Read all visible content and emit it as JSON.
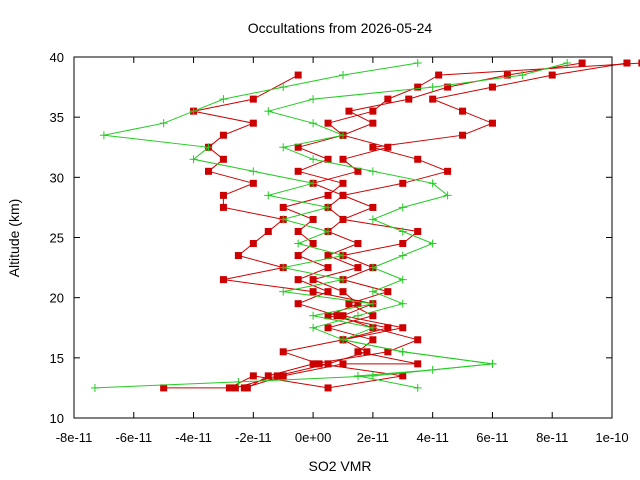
{
  "chart_data": {
    "type": "line",
    "title": "Occultations from 2026-05-24",
    "xlabel": "SO2 VMR",
    "ylabel": "Altitude (km)",
    "xlim": [
      -8e-11,
      1e-10
    ],
    "ylim": [
      10,
      40
    ],
    "x_ticks": [
      -8e-11,
      -6e-11,
      -4e-11,
      -2e-11,
      0,
      2e-11,
      4e-11,
      6e-11,
      8e-11,
      1e-10
    ],
    "x_tick_labels": [
      "-8e-11",
      "-6e-11",
      "-4e-11",
      "-2e-11",
      "0e+00",
      "2e-11",
      "4e-11",
      "6e-11",
      "8e-11",
      "1e-10"
    ],
    "y_ticks": [
      10,
      15,
      20,
      25,
      30,
      35,
      40
    ],
    "y_tick_labels": [
      "10",
      "15",
      "20",
      "25",
      "30",
      "35",
      "40"
    ],
    "grid": false,
    "legend": "none",
    "colors": {
      "red_series": "#cc0000",
      "green_series": "#22cc22"
    },
    "series": [
      {
        "marker": "square",
        "color": "#cc0000",
        "points": [
          [
            -5e-11,
            12.5
          ],
          [
            -2.8e-11,
            12.5
          ],
          [
            -2e-11,
            13.5
          ],
          [
            5e-12,
            12.5
          ],
          [
            3e-11,
            13.5
          ],
          [
            2e-12,
            14.5
          ],
          [
            -1e-11,
            15.5
          ],
          [
            1e-11,
            16.5
          ],
          [
            3e-11,
            17.5
          ],
          [
            1e-11,
            18.5
          ],
          [
            2e-11,
            19.5
          ],
          [
            0.0,
            20.5
          ],
          [
            -3e-11,
            21.5
          ],
          [
            -1e-11,
            22.5
          ],
          [
            -2.5e-11,
            23.5
          ],
          [
            -2e-11,
            24.5
          ],
          [
            -1.5e-11,
            25.5
          ],
          [
            -1e-11,
            26.5
          ],
          [
            -3e-11,
            27.5
          ],
          [
            -3e-11,
            28.5
          ],
          [
            -2e-11,
            29.5
          ],
          [
            -3.5e-11,
            30.5
          ],
          [
            -3e-11,
            31.5
          ],
          [
            -3.5e-11,
            32.5
          ],
          [
            -3e-11,
            33.5
          ],
          [
            -2e-11,
            34.5
          ],
          [
            -4e-11,
            35.5
          ],
          [
            -2e-11,
            36.5
          ],
          [
            -5e-12,
            38.5
          ]
        ]
      },
      {
        "marker": "square",
        "color": "#cc0000",
        "points": [
          [
            -2.3e-11,
            12.5
          ],
          [
            -1e-11,
            13.5
          ],
          [
            1e-11,
            14.5
          ],
          [
            3.5e-11,
            14.5
          ],
          [
            1.5e-11,
            15.5
          ],
          [
            2e-11,
            16.5
          ],
          [
            5e-12,
            17.5
          ],
          [
            2e-11,
            18.5
          ],
          [
            1.2e-11,
            19.5
          ],
          [
            2.5e-11,
            20.5
          ],
          [
            1e-11,
            21.5
          ],
          [
            2e-11,
            22.5
          ],
          [
            1e-11,
            23.5
          ],
          [
            3e-11,
            24.5
          ],
          [
            3.5e-11,
            25.5
          ],
          [
            1e-11,
            26.5
          ],
          [
            2e-11,
            27.5
          ],
          [
            1e-11,
            28.5
          ],
          [
            3e-11,
            29.5
          ],
          [
            4.5e-11,
            30.5
          ],
          [
            3.5e-11,
            31.5
          ],
          [
            2e-11,
            32.5
          ],
          [
            5e-11,
            33.5
          ],
          [
            6e-11,
            34.5
          ],
          [
            5e-11,
            35.5
          ],
          [
            4e-11,
            36.5
          ],
          [
            6e-11,
            37.5
          ],
          [
            8e-11,
            38.5
          ],
          [
            1.05e-10,
            39.5
          ]
        ]
      },
      {
        "marker": "square",
        "color": "#cc0000",
        "points": [
          [
            -2.6e-11,
            12.5
          ],
          [
            -1.2e-11,
            13.5
          ],
          [
            5e-12,
            14.5
          ],
          [
            1.8e-11,
            15.5
          ],
          [
            1e-11,
            16.5
          ],
          [
            2.5e-11,
            17.5
          ],
          [
            5e-12,
            18.5
          ],
          [
            1.5e-11,
            19.5
          ],
          [
            1e-11,
            20.5
          ],
          [
            0.0,
            21.5
          ],
          [
            1.5e-11,
            22.5
          ],
          [
            5e-12,
            23.5
          ],
          [
            1.5e-11,
            24.5
          ],
          [
            5e-12,
            25.5
          ],
          [
            1e-11,
            26.5
          ],
          [
            5e-12,
            27.5
          ],
          [
            1e-11,
            28.5
          ],
          [
            0.0,
            29.5
          ],
          [
            1.5e-11,
            30.5
          ],
          [
            1e-11,
            31.5
          ],
          [
            2.5e-11,
            32.5
          ],
          [
            1e-11,
            33.5
          ],
          [
            2e-11,
            34.5
          ],
          [
            1.2e-11,
            35.5
          ],
          [
            3.2e-11,
            36.5
          ],
          [
            4.5e-11,
            37.5
          ],
          [
            6.5e-11,
            38.5
          ],
          [
            9e-11,
            39.5
          ]
        ]
      },
      {
        "marker": "square",
        "color": "#cc0000",
        "points": [
          [
            -2.2e-11,
            12.5
          ],
          [
            -1.5e-11,
            13.5
          ],
          [
            0.0,
            14.5
          ],
          [
            2.5e-11,
            15.5
          ],
          [
            3.5e-11,
            16.5
          ],
          [
            2e-11,
            17.5
          ],
          [
            8e-12,
            18.5
          ],
          [
            -5e-12,
            19.5
          ],
          [
            5e-12,
            20.5
          ],
          [
            -5e-12,
            21.5
          ],
          [
            5e-12,
            22.5
          ],
          [
            -5e-12,
            23.5
          ],
          [
            0.0,
            24.5
          ],
          [
            -5e-12,
            25.5
          ],
          [
            0.0,
            26.5
          ],
          [
            -1e-11,
            27.5
          ],
          [
            5e-12,
            28.5
          ],
          [
            1e-11,
            29.5
          ],
          [
            -5e-12,
            30.5
          ],
          [
            5e-12,
            31.5
          ],
          [
            -5e-12,
            32.5
          ],
          [
            1e-11,
            33.5
          ],
          [
            5e-12,
            34.5
          ],
          [
            2e-11,
            35.5
          ],
          [
            2.5e-11,
            36.5
          ],
          [
            3.5e-11,
            37.5
          ],
          [
            4.2e-11,
            38.5
          ],
          [
            1.1e-10,
            39.5
          ]
        ]
      },
      {
        "marker": "plus",
        "color": "#22cc22",
        "points": [
          [
            -7.3e-11,
            12.5
          ],
          [
            -2.5e-11,
            13
          ],
          [
            2e-11,
            13.5
          ],
          [
            6e-11,
            14.5
          ],
          [
            3e-11,
            15.5
          ],
          [
            1e-11,
            16.5
          ],
          [
            2e-11,
            17.5
          ],
          [
            0.0,
            18.5
          ],
          [
            2e-11,
            19.5
          ],
          [
            -1e-11,
            20.5
          ],
          [
            1e-11,
            21.5
          ],
          [
            -1e-11,
            22.5
          ],
          [
            1e-11,
            23.5
          ],
          [
            -5e-12,
            24.5
          ],
          [
            5e-12,
            25.5
          ],
          [
            -1e-11,
            26.5
          ],
          [
            5e-12,
            27.5
          ],
          [
            -1.5e-11,
            28.5
          ],
          [
            0.0,
            29.5
          ],
          [
            -2e-11,
            30.5
          ],
          [
            -4e-11,
            31.5
          ],
          [
            -3.5e-11,
            32.5
          ],
          [
            -7e-11,
            33.5
          ],
          [
            -5e-11,
            34.5
          ],
          [
            -4e-11,
            35.5
          ],
          [
            -3e-11,
            36.5
          ],
          [
            -1e-11,
            37.5
          ],
          [
            1e-11,
            38.5
          ],
          [
            3.5e-11,
            39.5
          ]
        ]
      },
      {
        "marker": "plus",
        "color": "#22cc22",
        "points": [
          [
            3.5e-11,
            12.5
          ],
          [
            1.5e-11,
            13.5
          ],
          [
            4e-11,
            14
          ],
          [
            6e-11,
            14.5
          ],
          [
            3e-11,
            15.5
          ],
          [
            1e-11,
            16.5
          ],
          [
            0.0,
            17.5
          ],
          [
            1.5e-11,
            18.5
          ],
          [
            3e-11,
            19.5
          ],
          [
            2e-11,
            20.5
          ],
          [
            3e-11,
            21.5
          ],
          [
            2e-11,
            22.5
          ],
          [
            3e-11,
            23.5
          ],
          [
            4e-11,
            24.5
          ],
          [
            3e-11,
            25.5
          ],
          [
            2e-11,
            26.5
          ],
          [
            3e-11,
            27.5
          ],
          [
            4.5e-11,
            28.5
          ],
          [
            4e-11,
            29.5
          ],
          [
            2e-11,
            30.5
          ],
          [
            0.0,
            31.5
          ],
          [
            -1e-11,
            32.5
          ],
          [
            1e-11,
            33.5
          ],
          [
            0.0,
            34.5
          ],
          [
            -1.5e-11,
            35.5
          ],
          [
            0.0,
            36.5
          ],
          [
            4e-11,
            37.5
          ],
          [
            7e-11,
            38.5
          ],
          [
            8.5e-11,
            39.5
          ]
        ]
      }
    ]
  }
}
